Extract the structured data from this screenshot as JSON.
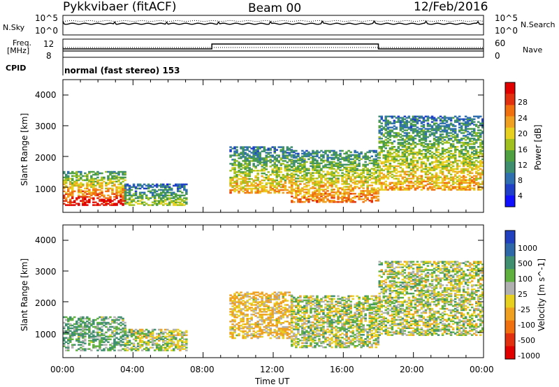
{
  "header": {
    "station": "Pykkvibaer (fitACF)",
    "beam": "Beam 00",
    "date": "12/Feb/2016"
  },
  "noise_panel": {
    "left_label": "N.Sky",
    "right_label": "N.Search",
    "left_ticks": [
      "10^5",
      "10^0"
    ],
    "right_ticks": [
      "10^5",
      "10^0"
    ]
  },
  "freq_panel": {
    "left_label_1": "Freq.",
    "left_label_2": "[MHz]",
    "right_label": "Nave",
    "left_ticks": [
      "12",
      "8"
    ],
    "right_ticks": [
      "60",
      "0"
    ]
  },
  "cpid": {
    "label": "CPID",
    "mode_text": "normal (fast stereo) 153"
  },
  "x_axis": {
    "title": "Time UT",
    "ticks": [
      "00:00",
      "04:00",
      "08:00",
      "12:00",
      "16:00",
      "20:00",
      "00:00"
    ]
  },
  "power_panel": {
    "ylabel": "Slant Range [km]",
    "yticks": [
      "1000",
      "2000",
      "3000",
      "4000"
    ],
    "colorbar_title": "Power [dB]",
    "colorbar_ticks": [
      "4",
      "8",
      "12",
      "16",
      "20",
      "24",
      "28"
    ],
    "colorbar_colors": [
      "#1010ff",
      "#2040c8",
      "#2f6fb0",
      "#3f8f6f",
      "#4fa040",
      "#a0c020",
      "#e8d020",
      "#f0a020",
      "#f07010",
      "#e03010",
      "#e00000"
    ]
  },
  "velocity_panel": {
    "ylabel": "Slant Range [km]",
    "yticks": [
      "1000",
      "2000",
      "3000",
      "4000"
    ],
    "colorbar_title": "Velocity [m s^-1]",
    "colorbar_ticks": [
      "1000",
      "500",
      "100",
      "25",
      "-25",
      "-100",
      "-500",
      "-1000"
    ],
    "colorbar_colors": [
      "#2040c0",
      "#2f68a8",
      "#3f8f70",
      "#60b040",
      "#b0b0b0",
      "#e8d020",
      "#f0a020",
      "#f07010",
      "#e03010",
      "#e00000"
    ]
  },
  "chart_data": [
    {
      "type": "heatmap",
      "title": "Power",
      "xlabel": "Time UT",
      "ylabel": "Slant Range [km]",
      "xlim": [
        "00:00",
        "24:00"
      ],
      "ylim": [
        180,
        4500
      ],
      "colorbar": {
        "label": "Power [dB]",
        "range": [
          0,
          30
        ]
      },
      "echo_regions": [
        {
          "start": "00:00",
          "end": "03:30",
          "range_min": 400,
          "range_max": 1500,
          "typical_power_db": 22
        },
        {
          "start": "03:30",
          "end": "07:00",
          "range_min": 400,
          "range_max": 1100,
          "typical_power_db": 12
        },
        {
          "start": "09:30",
          "end": "13:00",
          "range_min": 800,
          "range_max": 2300,
          "typical_power_db": 16
        },
        {
          "start": "13:00",
          "end": "18:00",
          "range_min": 500,
          "range_max": 2200,
          "typical_power_db": 18
        },
        {
          "start": "18:00",
          "end": "24:00",
          "range_min": 900,
          "range_max": 3300,
          "typical_power_db": 16
        }
      ]
    },
    {
      "type": "heatmap",
      "title": "Velocity",
      "xlabel": "Time UT",
      "ylabel": "Slant Range [km]",
      "xlim": [
        "00:00",
        "24:00"
      ],
      "ylim": [
        180,
        4500
      ],
      "colorbar": {
        "label": "Velocity [m s^-1]",
        "range": [
          -1000,
          1000
        ]
      },
      "echo_regions": [
        {
          "start": "00:00",
          "end": "03:30",
          "range_min": 400,
          "range_max": 1500,
          "typical_velocity": 100
        },
        {
          "start": "03:30",
          "end": "07:00",
          "range_min": 400,
          "range_max": 1100,
          "typical_velocity": 0
        },
        {
          "start": "09:30",
          "end": "13:00",
          "range_min": 800,
          "range_max": 2300,
          "typical_velocity": -100
        },
        {
          "start": "13:00",
          "end": "18:00",
          "range_min": 500,
          "range_max": 2200,
          "typical_velocity": 0
        },
        {
          "start": "18:00",
          "end": "24:00",
          "range_min": 900,
          "range_max": 3300,
          "typical_velocity": 0
        }
      ]
    }
  ]
}
